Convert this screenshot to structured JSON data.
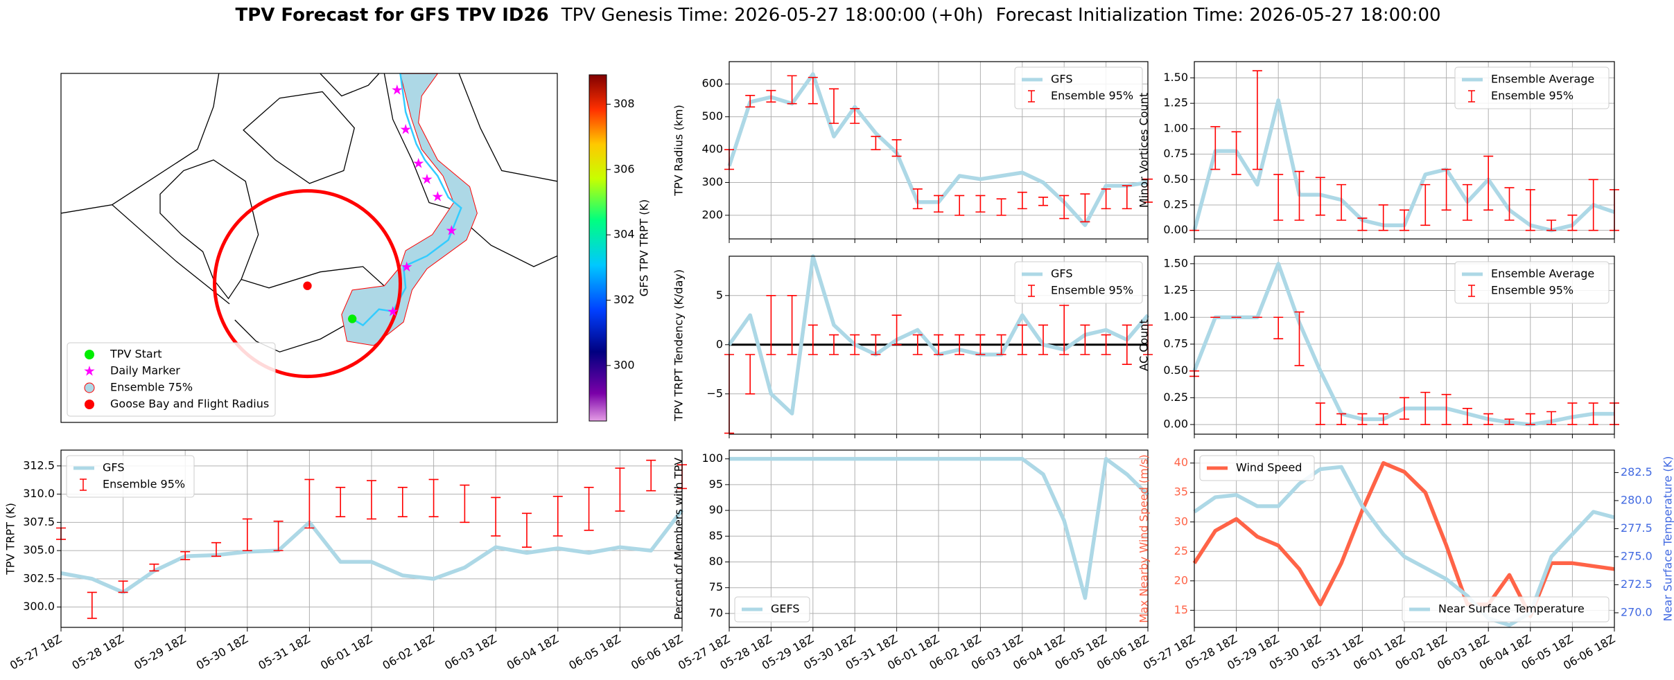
{
  "title": "TPV Forecast for GFS TPV ID26",
  "subtitle": [
    "TPV Genesis Time: 2026-05-27 18:00:00 (+0h)",
    "Forecast Initialization Time: 2026-05-27 18:00:00"
  ],
  "chart_data": [
    {
      "type": "map",
      "legend": [
        {
          "name": "TPV Start",
          "color": "#00ee00",
          "marker": "circle"
        },
        {
          "name": "Daily Marker",
          "color": "#ff00ff",
          "marker": "star"
        },
        {
          "name": "Ensemble 75%",
          "color": "#add8e6",
          "marker": "circle"
        },
        {
          "name": "Goose Bay and Flight Radius",
          "color": "#ff0000",
          "marker": "circle"
        }
      ],
      "legend_corner": "lower left",
      "colorbar": {
        "label": "GFS TPV TRPT (K)",
        "lim": [
          298.3,
          308.9
        ],
        "ticks": [
          300,
          302,
          304,
          306,
          308
        ]
      }
    },
    {
      "type": "line",
      "ylabel": "TPV Radius (km)",
      "ylim": [
        128,
        668
      ],
      "yticks": [
        200,
        300,
        400,
        500,
        600
      ],
      "grid": true,
      "legend": "upper right",
      "xlim": [
        "05-27 18Z",
        "06-06 18Z"
      ],
      "x": [
        "05-27 18Z",
        "05-28 06Z",
        "05-28 18Z",
        "05-29 06Z",
        "05-29 18Z",
        "05-30 06Z",
        "05-30 18Z",
        "05-31 06Z",
        "05-31 18Z",
        "06-01 06Z",
        "06-01 18Z",
        "06-02 06Z",
        "06-02 18Z",
        "06-03 06Z",
        "06-03 18Z",
        "06-04 06Z",
        "06-04 18Z",
        "06-05 06Z",
        "06-05 18Z",
        "06-06 06Z",
        "06-06 18Z"
      ],
      "series": [
        {
          "name": "GFS",
          "color": "#add8e6",
          "values": [
            350,
            545,
            560,
            540,
            630,
            440,
            530,
            450,
            390,
            240,
            240,
            320,
            310,
            320,
            330,
            300,
            240,
            170,
            290,
            290,
            300
          ]
        },
        {
          "name": "Ensemble 95%",
          "color": "#ff0000",
          "low": [
            340,
            530,
            545,
            540,
            540,
            480,
            480,
            400,
            380,
            220,
            210,
            200,
            210,
            200,
            220,
            230,
            190,
            180,
            220,
            220,
            240
          ],
          "high": [
            400,
            565,
            580,
            625,
            620,
            585,
            525,
            440,
            430,
            280,
            260,
            260,
            260,
            250,
            270,
            255,
            260,
            265,
            280,
            290,
            310
          ]
        }
      ]
    },
    {
      "type": "line",
      "ylabel": "Minor Vortices Count",
      "ylim": [
        -0.084,
        1.66
      ],
      "yticks": [
        {
          "value": 0,
          "label": "0.00"
        },
        {
          "value": 0.25,
          "label": "0.25"
        },
        {
          "value": 0.5,
          "label": "0.50"
        },
        {
          "value": 0.75,
          "label": "0.75"
        },
        {
          "value": 1,
          "label": "1.00"
        },
        {
          "value": 1.25,
          "label": "1.25"
        },
        {
          "value": 1.5,
          "label": "1.50"
        }
      ],
      "grid": true,
      "legend": "upper right",
      "xlim": [
        "05-27 18Z",
        "06-06 18Z"
      ],
      "x": [
        "05-27 18Z",
        "05-28 06Z",
        "05-28 18Z",
        "05-29 06Z",
        "05-29 18Z",
        "05-30 06Z",
        "05-30 18Z",
        "05-31 06Z",
        "05-31 18Z",
        "06-01 06Z",
        "06-01 18Z",
        "06-02 06Z",
        "06-02 18Z",
        "06-03 06Z",
        "06-03 18Z",
        "06-04 06Z",
        "06-04 18Z",
        "06-05 06Z",
        "06-05 18Z",
        "06-06 06Z",
        "06-06 18Z"
      ],
      "series": [
        {
          "name": "Ensemble Average",
          "color": "#add8e6",
          "values": [
            0,
            0.78,
            0.78,
            0.45,
            1.28,
            0.35,
            0.35,
            0.3,
            0.1,
            0.05,
            0.05,
            0.55,
            0.6,
            0.28,
            0.5,
            0.2,
            0.05,
            0,
            0.05,
            0.25,
            0.18
          ]
        },
        {
          "name": "Ensemble 95%",
          "color": "#ff0000",
          "low": [
            0,
            0.6,
            0.55,
            0.6,
            0.1,
            0.1,
            0.15,
            0.1,
            0,
            0,
            0,
            0.05,
            0.2,
            0.1,
            0.2,
            0.1,
            0,
            0,
            0,
            0,
            0
          ],
          "high": [
            0,
            1.02,
            0.97,
            1.57,
            0.55,
            0.58,
            0.52,
            0.45,
            0.12,
            0.25,
            0.2,
            0.45,
            0.6,
            0.45,
            0.73,
            0.42,
            0.4,
            0.1,
            0.15,
            0.5,
            0.4
          ]
        }
      ]
    },
    {
      "type": "line",
      "ylabel": "TPV TRPT Tendency (K/day)",
      "ylim": [
        -9.1,
        9.0
      ],
      "yticks": [
        {
          "value": -5,
          "label": "−5"
        },
        0,
        5
      ],
      "grid": true,
      "legend": "upper right",
      "hline": 0,
      "xlim": [
        "05-27 18Z",
        "06-06 18Z"
      ],
      "x": [
        "05-27 18Z",
        "05-28 06Z",
        "05-28 18Z",
        "05-29 06Z",
        "05-29 18Z",
        "05-30 06Z",
        "05-30 18Z",
        "05-31 06Z",
        "05-31 18Z",
        "06-01 06Z",
        "06-01 18Z",
        "06-02 06Z",
        "06-02 18Z",
        "06-03 06Z",
        "06-03 18Z",
        "06-04 06Z",
        "06-04 18Z",
        "06-05 06Z",
        "06-05 18Z",
        "06-06 06Z",
        "06-06 18Z"
      ],
      "series": [
        {
          "name": "GFS",
          "color": "#add8e6",
          "values": [
            0,
            3,
            -5,
            -7,
            9,
            2,
            0,
            -1,
            0.5,
            1.5,
            -1,
            -0.5,
            -1,
            -1,
            3,
            0,
            -0.5,
            1,
            1.5,
            0.5,
            3
          ]
        },
        {
          "name": "Ensemble 95%",
          "color": "#ff0000",
          "low": [
            -9,
            -5,
            -1,
            -1,
            -1,
            -1,
            -1,
            -1,
            0,
            -1,
            -1,
            -1,
            -1,
            -1,
            -1,
            -1,
            -1,
            -1,
            -1,
            -2,
            -1
          ],
          "high": [
            -1,
            -1,
            5,
            5,
            2,
            1,
            1,
            1,
            3,
            1,
            1,
            1,
            1,
            1,
            2,
            2,
            4,
            2,
            1,
            2,
            2
          ]
        }
      ]
    },
    {
      "type": "line",
      "ylabel": "AC Count",
      "ylim": [
        -0.09,
        1.57
      ],
      "yticks": [
        {
          "value": 0,
          "label": "0.00"
        },
        {
          "value": 0.25,
          "label": "0.25"
        },
        {
          "value": 0.5,
          "label": "0.50"
        },
        {
          "value": 0.75,
          "label": "0.75"
        },
        {
          "value": 1,
          "label": "1.00"
        },
        {
          "value": 1.25,
          "label": "1.25"
        },
        {
          "value": 1.5,
          "label": "1.50"
        }
      ],
      "grid": true,
      "legend": "upper right",
      "xlim": [
        "05-27 18Z",
        "06-06 18Z"
      ],
      "x": [
        "05-27 18Z",
        "05-28 06Z",
        "05-28 18Z",
        "05-29 06Z",
        "05-29 18Z",
        "05-30 06Z",
        "05-30 18Z",
        "05-31 06Z",
        "05-31 18Z",
        "06-01 06Z",
        "06-01 18Z",
        "06-02 06Z",
        "06-02 18Z",
        "06-03 06Z",
        "06-03 18Z",
        "06-04 06Z",
        "06-04 18Z",
        "06-05 06Z",
        "06-05 18Z",
        "06-06 06Z",
        "06-06 18Z"
      ],
      "series": [
        {
          "name": "Ensemble Average",
          "color": "#add8e6",
          "values": [
            0.5,
            1.0,
            1.0,
            1.0,
            1.5,
            0.95,
            0.5,
            0.1,
            0.05,
            0.05,
            0.15,
            0.15,
            0.15,
            0.1,
            0.05,
            0.02,
            0,
            0.03,
            0.07,
            0.1,
            0.1
          ]
        },
        {
          "name": "Ensemble 95%",
          "color": "#ff0000",
          "low": [
            0.45,
            1.0,
            1.0,
            1.0,
            0.8,
            0.55,
            0,
            0,
            0,
            0,
            0.05,
            0,
            0,
            0,
            0,
            0,
            0,
            0,
            0,
            0,
            0
          ],
          "high": [
            0.5,
            1.0,
            1.0,
            1.0,
            1.0,
            1.05,
            0.2,
            0.1,
            0.1,
            0.1,
            0.25,
            0.3,
            0.28,
            0.15,
            0.1,
            0.05,
            0.1,
            0.12,
            0.2,
            0.2,
            0.2
          ]
        }
      ]
    },
    {
      "type": "line",
      "ylabel": "TPV TRPT (K)",
      "ylim": [
        298.2,
        313.9
      ],
      "yticks": [
        {
          "value": 300,
          "label": "300.0"
        },
        302.5,
        {
          "value": 305,
          "label": "305.0"
        },
        307.5,
        {
          "value": 310,
          "label": "310.0"
        },
        312.5
      ],
      "grid": true,
      "legend": "upper left",
      "xlim": [
        "05-27 18Z",
        "06-06 18Z"
      ],
      "xticks": [
        "05-27 18Z",
        "05-28 18Z",
        "05-29 18Z",
        "05-30 18Z",
        "05-31 18Z",
        "06-01 18Z",
        "06-02 18Z",
        "06-03 18Z",
        "06-04 18Z",
        "06-05 18Z",
        "06-06 18Z"
      ],
      "x": [
        "05-27 18Z",
        "05-28 06Z",
        "05-28 18Z",
        "05-29 06Z",
        "05-29 18Z",
        "05-30 06Z",
        "05-30 18Z",
        "05-31 06Z",
        "05-31 18Z",
        "06-01 06Z",
        "06-01 18Z",
        "06-02 06Z",
        "06-02 18Z",
        "06-03 06Z",
        "06-03 18Z",
        "06-04 06Z",
        "06-04 18Z",
        "06-05 06Z",
        "06-05 18Z",
        "06-06 06Z",
        "06-06 18Z"
      ],
      "series": [
        {
          "name": "GFS",
          "color": "#add8e6",
          "values": [
            303,
            302.5,
            301.3,
            303.2,
            304.5,
            304.6,
            304.9,
            305,
            307.5,
            304,
            304,
            302.8,
            302.5,
            303.5,
            305.3,
            304.8,
            305.2,
            304.8,
            305.3,
            305,
            308.6
          ]
        },
        {
          "name": "Ensemble 95%",
          "color": "#ff0000",
          "low": [
            306,
            299,
            301.3,
            303.2,
            304.2,
            304.5,
            305,
            305,
            307,
            308,
            307.8,
            308,
            308,
            307.5,
            306.3,
            305.3,
            306.3,
            306.8,
            308.5,
            310.3,
            310.5
          ],
          "high": [
            307,
            301.3,
            302.3,
            303.8,
            304.9,
            305.7,
            307.8,
            307.6,
            311.3,
            310.6,
            311.2,
            310.6,
            311.3,
            310.8,
            309.7,
            308.3,
            309.8,
            310.6,
            312.3,
            313,
            312.6
          ]
        }
      ]
    },
    {
      "type": "line",
      "ylabel": "Percent of Members with TPV",
      "ylim": [
        67.3,
        101.7
      ],
      "yticks": [
        70,
        75,
        80,
        85,
        90,
        95,
        100
      ],
      "grid": true,
      "legend": "lower left",
      "xlim": [
        "05-27 18Z",
        "06-06 18Z"
      ],
      "xticks": [
        "05-27 18Z",
        "05-28 18Z",
        "05-29 18Z",
        "05-30 18Z",
        "05-31 18Z",
        "06-01 18Z",
        "06-02 18Z",
        "06-03 18Z",
        "06-04 18Z",
        "06-05 18Z",
        "06-06 18Z"
      ],
      "x": [
        "05-27 18Z",
        "05-28 06Z",
        "05-28 18Z",
        "05-29 06Z",
        "05-29 18Z",
        "05-30 06Z",
        "05-30 18Z",
        "05-31 06Z",
        "05-31 18Z",
        "06-01 06Z",
        "06-01 18Z",
        "06-02 06Z",
        "06-02 18Z",
        "06-03 06Z",
        "06-03 18Z",
        "06-04 06Z",
        "06-04 18Z",
        "06-05 06Z",
        "06-05 18Z",
        "06-06 06Z",
        "06-06 18Z"
      ],
      "series": [
        {
          "name": "GEFS",
          "color": "#add8e6",
          "values": [
            100,
            100,
            100,
            100,
            100,
            100,
            100,
            100,
            100,
            100,
            100,
            100,
            100,
            100,
            100,
            97,
            88,
            73,
            100,
            97,
            93
          ]
        }
      ]
    },
    {
      "type": "line",
      "ylabel": "Max Nearby Wind Speed (m/s)",
      "ylabel_color": "#ff6347",
      "ylim": [
        12.1,
        42.2
      ],
      "yticks": [
        15,
        20,
        25,
        30,
        35,
        40
      ],
      "y2label": "Near Surface Temperature (K)",
      "y2label_color": "#4169e1",
      "y2lim": [
        268.7,
        284.5
      ],
      "y2ticks": [
        {
          "value": 270,
          "label": "270.0"
        },
        272.5,
        {
          "value": 275,
          "label": "275.0"
        },
        277.5,
        {
          "value": 280,
          "label": "280.0"
        },
        282.5
      ],
      "grid": true,
      "legend": "upper left",
      "legend_y2": "lower right",
      "xlim": [
        "05-27 18Z",
        "06-06 18Z"
      ],
      "xticks": [
        "05-27 18Z",
        "05-28 18Z",
        "05-29 18Z",
        "05-30 18Z",
        "05-31 18Z",
        "06-01 18Z",
        "06-02 18Z",
        "06-03 18Z",
        "06-04 18Z",
        "06-05 18Z",
        "06-06 18Z"
      ],
      "x": [
        "05-27 18Z",
        "05-28 06Z",
        "05-28 18Z",
        "05-29 06Z",
        "05-29 18Z",
        "05-30 06Z",
        "05-30 18Z",
        "05-31 06Z",
        "05-31 18Z",
        "06-01 06Z",
        "06-01 18Z",
        "06-02 06Z",
        "06-02 18Z",
        "06-03 06Z",
        "06-03 18Z",
        "06-04 06Z",
        "06-04 18Z",
        "06-05 06Z",
        "06-05 18Z",
        "06-06 06Z",
        "06-06 18Z"
      ],
      "series": [
        {
          "name": "Wind Speed",
          "color": "#ff6347",
          "values": [
            23,
            28.5,
            30.5,
            27.5,
            26,
            22,
            16,
            23,
            32,
            40,
            38.5,
            35,
            26,
            16,
            16,
            21,
            14,
            23,
            23,
            22.5,
            22
          ]
        },
        {
          "name": "Near Surface Temperature",
          "color": "#add8e6",
          "axis": "y2",
          "values": [
            279,
            280.3,
            280.5,
            279.5,
            279.5,
            281.5,
            282.8,
            283,
            279.5,
            277,
            275,
            274,
            273,
            271.5,
            269.5,
            268.9,
            270,
            275,
            277,
            279,
            278.5
          ]
        }
      ]
    }
  ]
}
